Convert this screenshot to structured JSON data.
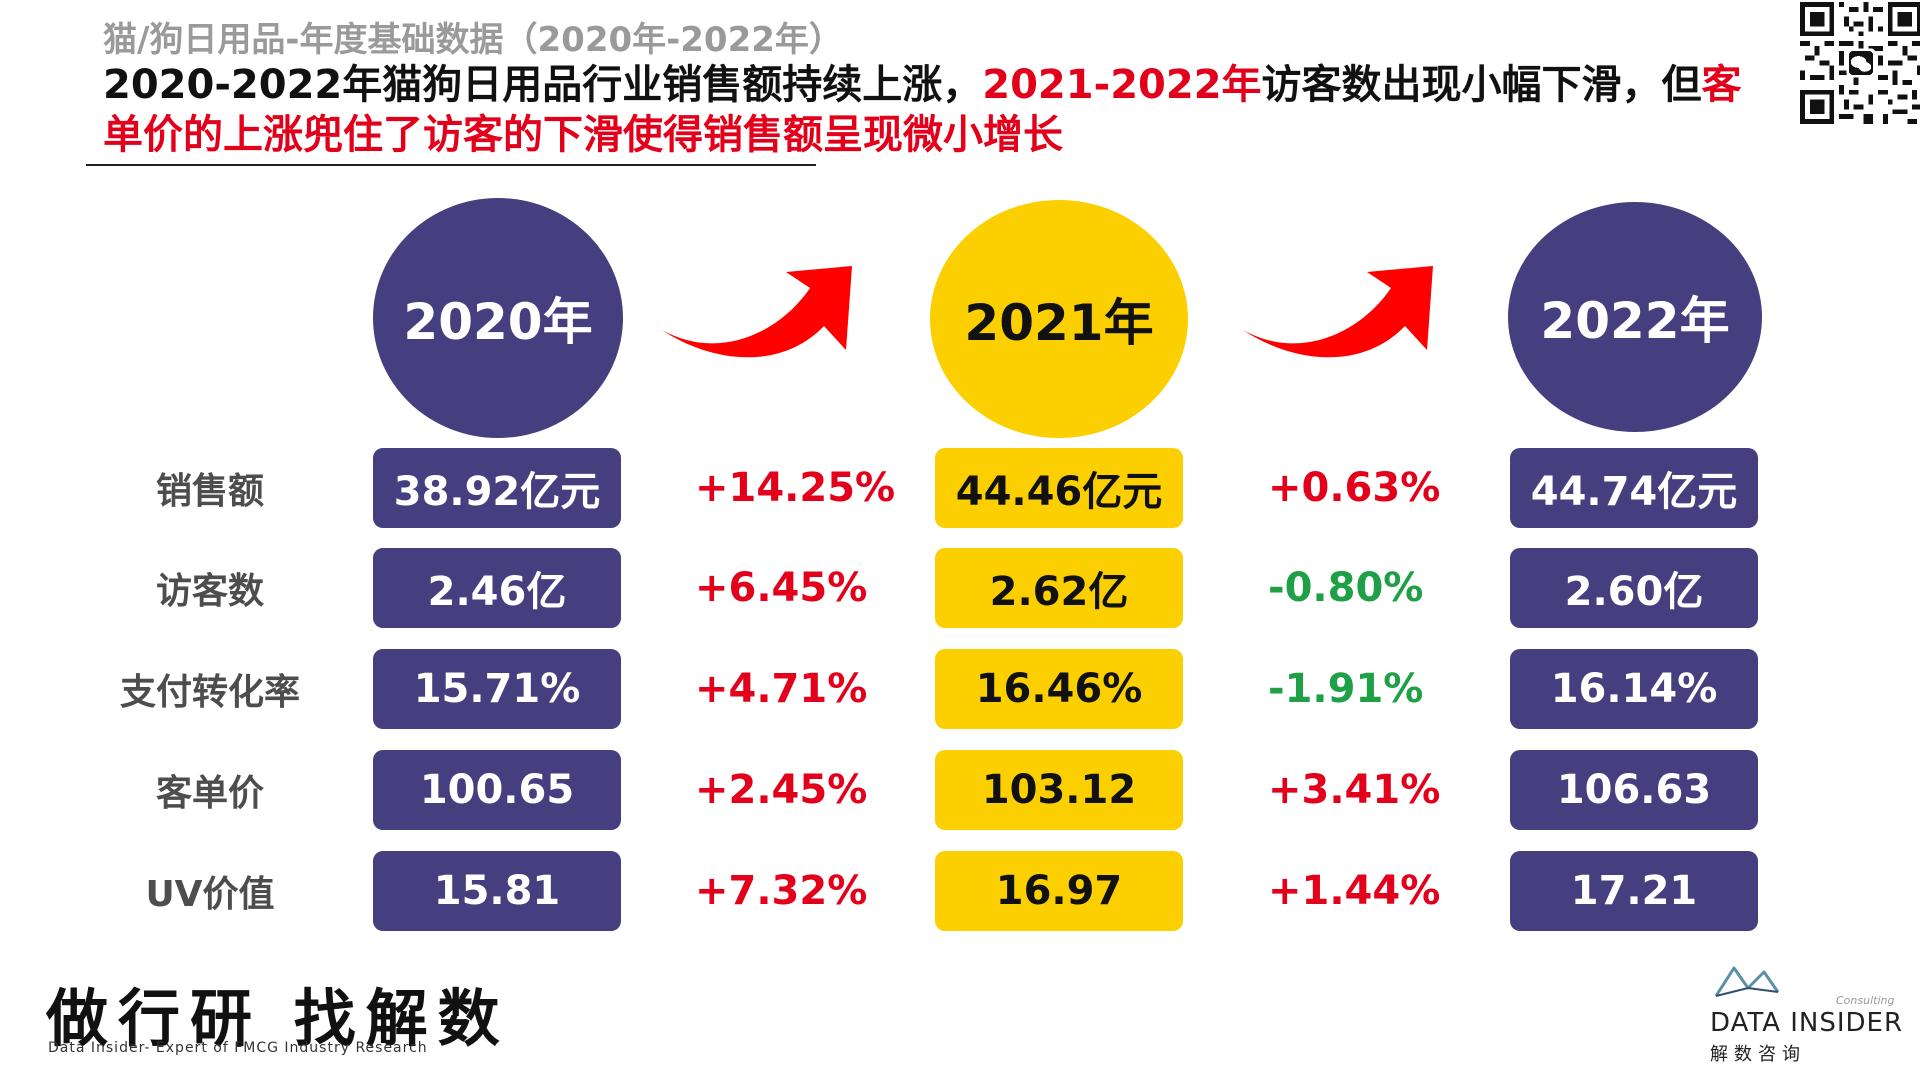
{
  "header": {
    "subtitle": "猫/狗日用品-年度基础数据（2020年-2022年）",
    "headline": {
      "part1": "2020-2022年猫狗日用品行业销售额持续上涨，",
      "part2_red": "2021-2022年",
      "part3": "访客数出现小幅下滑，但",
      "part4_red": "客单价的上涨兜住了访客的下滑使得销售额呈现微小增长"
    }
  },
  "qr_code": {
    "icon": "qr-code-icon"
  },
  "years": [
    "2020年",
    "2021年",
    "2022年"
  ],
  "rows": [
    {
      "label": "销售额",
      "v2020": "38.92亿元",
      "chg1": "+14.25%",
      "v2021": "44.46亿元",
      "chg2": "+0.63%",
      "v2022": "44.74亿元"
    },
    {
      "label": "访客数",
      "v2020": "2.46亿",
      "chg1": "+6.45%",
      "v2021": "2.62亿",
      "chg2": "-0.80%",
      "v2022": "2.60亿"
    },
    {
      "label": "支付转化率",
      "v2020": "15.71%",
      "chg1": "+4.71%",
      "v2021": "16.46%",
      "chg2": "-1.91%",
      "v2022": "16.14%"
    },
    {
      "label": "客单价",
      "v2020": "100.65",
      "chg1": "+2.45%",
      "v2021": "103.12",
      "chg2": "+3.41%",
      "v2022": "106.63"
    },
    {
      "label": "UV价值",
      "v2020": "15.81",
      "chg1": "+7.32%",
      "v2021": "16.97",
      "chg2": "+1.44%",
      "v2022": "17.21"
    }
  ],
  "footer": {
    "slogan": "做行研 找解数",
    "slogan_en": "Data Insider- Expert of FMCG Industry Research",
    "brand_name": "DATA INSIDER",
    "brand_tag": "Consulting",
    "brand_cn": "解数咨询"
  },
  "colors": {
    "navy": "#453f7f",
    "yellow": "#fcd000",
    "red": "#e3001b",
    "green": "#1fa047"
  }
}
